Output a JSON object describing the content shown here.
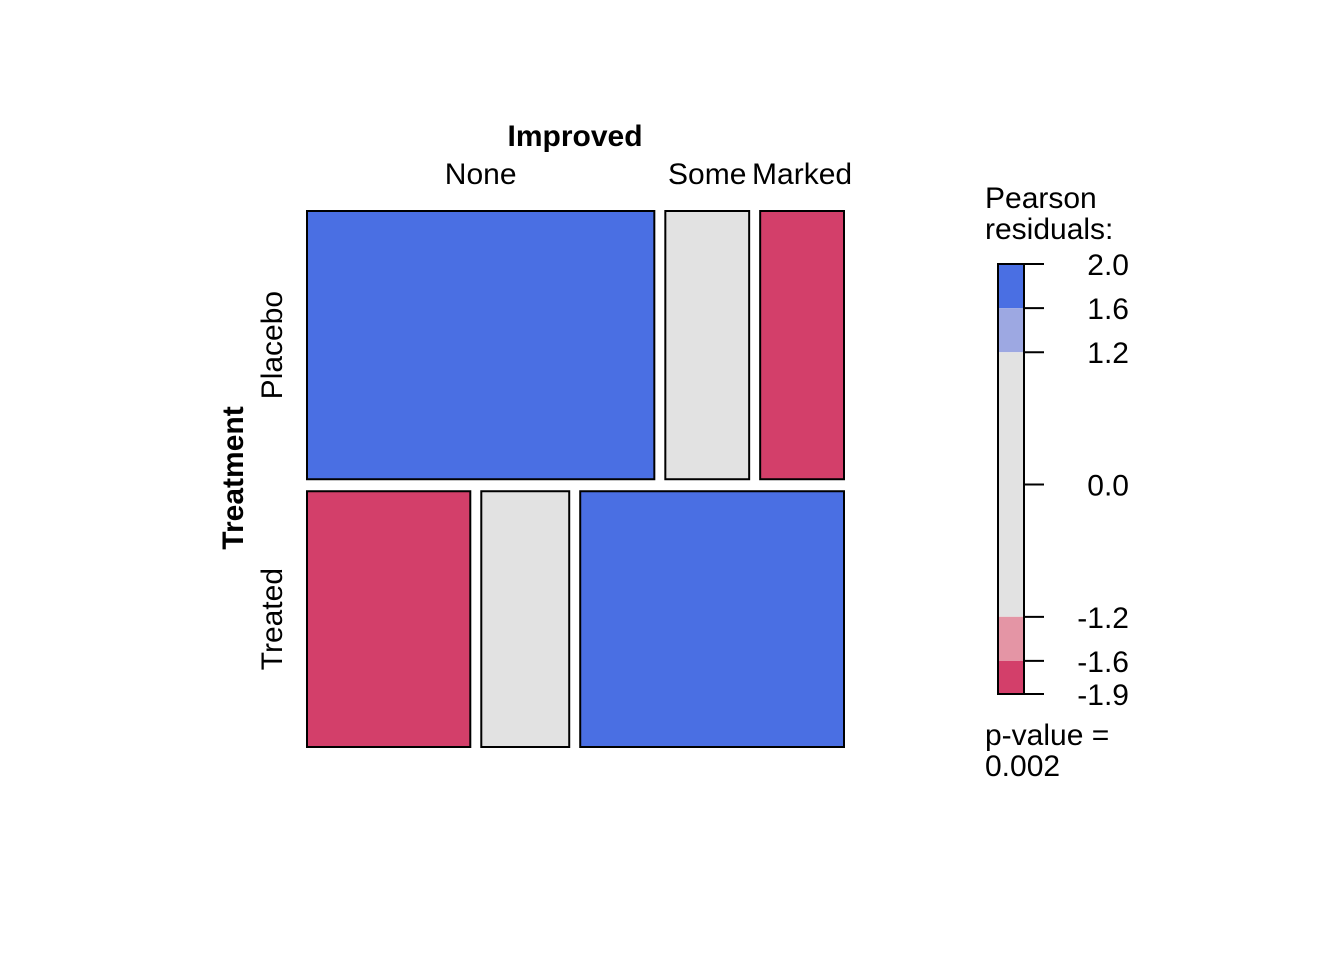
{
  "chart_data": {
    "type": "mosaic",
    "column_variable": "Improved",
    "row_variable": "Treatment",
    "columns": [
      "None",
      "Some",
      "Marked"
    ],
    "rows": [
      {
        "label": "Placebo",
        "counts": [
          29,
          7,
          7
        ],
        "fill": "#4A6FE3"
      },
      {
        "label": "Treated",
        "counts": [
          13,
          7,
          21
        ],
        "fill": "#4A6FE3"
      }
    ],
    "cell_colors": [
      [
        "#4A6FE3",
        "#E2E2E2",
        "#D33F6A"
      ],
      [
        "#D33F6A",
        "#E2E2E2",
        "#4A6FE3"
      ]
    ],
    "legend": {
      "title_line1": "Pearson",
      "title_line2": "residuals:",
      "ticks": [
        {
          "value": 2.0,
          "label": "2.0"
        },
        {
          "value": 1.6,
          "label": "1.6"
        },
        {
          "value": 1.2,
          "label": "1.2"
        },
        {
          "value": 0.0,
          "label": "0.0"
        },
        {
          "value": -1.2,
          "label": "-1.2"
        },
        {
          "value": -1.6,
          "label": "-1.6"
        },
        {
          "value": -1.9,
          "label": "-1.9"
        }
      ],
      "range": [
        -1.9,
        2.0
      ],
      "bands": [
        {
          "from": 1.6,
          "to": 2.0,
          "color": "#4A6FE3"
        },
        {
          "from": 1.2,
          "to": 1.6,
          "color": "#9DA8E2"
        },
        {
          "from": -1.2,
          "to": 1.2,
          "color": "#E2E2E2"
        },
        {
          "from": -1.6,
          "to": -1.2,
          "color": "#E495A5"
        },
        {
          "from": -1.9,
          "to": -1.6,
          "color": "#D33F6A"
        }
      ],
      "pvalue_line1": "p-value =",
      "pvalue_line2": "0.002"
    }
  }
}
